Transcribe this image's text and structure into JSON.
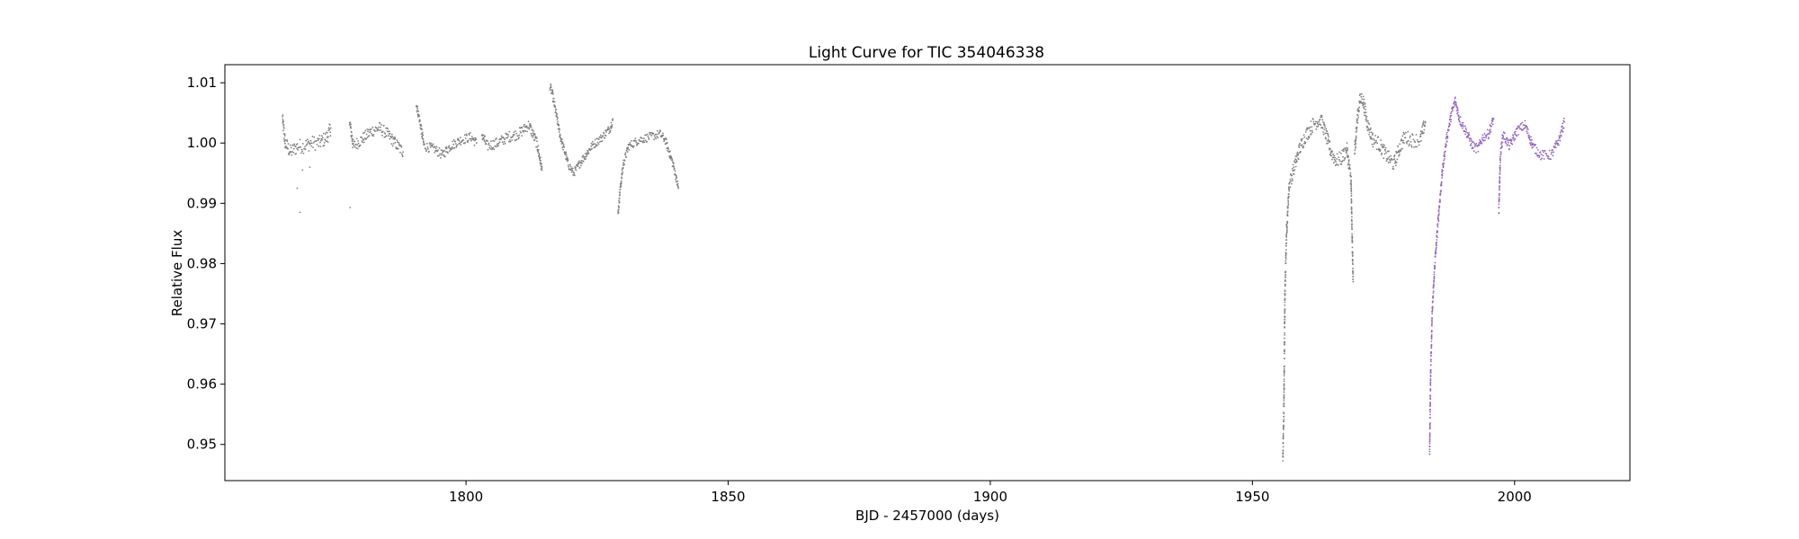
{
  "chart_data": {
    "type": "scatter",
    "title": "Light Curve for TIC 354046338",
    "xlabel": "BJD - 2457000 (days)",
    "ylabel": "Relative Flux",
    "xlim": [
      1754,
      2022
    ],
    "ylim": [
      0.944,
      1.013
    ],
    "xticks": [
      1800,
      1850,
      1900,
      1950,
      2000
    ],
    "yticks": [
      0.95,
      0.96,
      0.97,
      0.98,
      0.99,
      1.0,
      1.01
    ],
    "ytick_labels": [
      "0.95",
      "0.96",
      "0.97",
      "0.98",
      "0.99",
      "1.00",
      "1.01"
    ],
    "grid": false,
    "legend": "none",
    "series": [
      {
        "color": "#808080",
        "segments": [
          {
            "x": [
              1765.0,
              1765.5,
              1766.5,
              1768.0,
              1769.0,
              1770.5,
              1772.0,
              1773.5,
              1774.2
            ],
            "y": [
              1.004,
              1.0,
              0.9985,
              0.9995,
              0.9995,
              1.0,
              1.0,
              1.001,
              1.0025
            ],
            "spread": 0.0012
          },
          {
            "x": [
              1767.8,
              1768.3,
              1768.8,
              1770.2,
              1777.9
            ],
            "y": [
              0.9925,
              0.9885,
              0.9955,
              0.996,
              0.9893
            ],
            "spread": 0,
            "sparse": true
          },
          {
            "x": [
              1777.8,
              1778.5,
              1780.0,
              1782.0,
              1783.5,
              1785.0,
              1787.0,
              1788.0
            ],
            "y": [
              1.0035,
              0.9995,
              1.0005,
              1.002,
              1.0025,
              1.0015,
              0.9995,
              0.9985
            ],
            "spread": 0.001
          },
          {
            "x": [
              1790.5,
              1791.0,
              1792.0,
              1794.0,
              1795.5,
              1797.0,
              1799.0,
              1801.0,
              1802.0
            ],
            "y": [
              1.0065,
              1.0045,
              0.9995,
              0.999,
              0.998,
              0.9995,
              1.0005,
              1.001,
              1.0
            ],
            "spread": 0.0008
          },
          {
            "x": [
              1803.0,
              1804.0,
              1806.0,
              1808.0,
              1810.0,
              1812.0,
              1813.5,
              1814.5
            ],
            "y": [
              1.0015,
              0.9995,
              1.0,
              1.001,
              1.0015,
              1.003,
              1.0,
              0.9955
            ],
            "spread": 0.0009
          },
          {
            "x": [
              1816.0,
              1816.5,
              1818.0,
              1819.5,
              1820.5,
              1822.0,
              1824.0,
              1826.0,
              1827.5,
              1828.0
            ],
            "y": [
              1.0095,
              1.008,
              1.001,
              0.9965,
              0.995,
              0.997,
              0.9995,
              1.001,
              1.0025,
              1.004
            ],
            "spread": 0.0007
          },
          {
            "x": [
              1829.0,
              1829.3,
              1830.0,
              1831.0,
              1833.0,
              1835.0,
              1837.0,
              1838.0,
              1839.5,
              1840.5
            ],
            "y": [
              0.988,
              0.9915,
              0.9965,
              0.9995,
              1.0005,
              1.001,
              1.0015,
              1.0005,
              0.9965,
              0.9925
            ],
            "spread": 0.0007
          },
          {
            "x": [
              1955.8,
              1956.0,
              1956.2,
              1956.5,
              1957.0,
              1958.0,
              1959.0,
              1960.0,
              1961.5,
              1963.0,
              1964.0,
              1965.0,
              1966.0,
              1967.0,
              1968.0,
              1968.8,
              1969.2
            ],
            "y": [
              0.9475,
              0.956,
              0.975,
              0.985,
              0.993,
              0.996,
              0.999,
              1.001,
              1.003,
              1.004,
              1.0015,
              0.9985,
              0.997,
              0.9975,
              0.999,
              0.994,
              0.977
            ],
            "spread": 0.0012
          },
          {
            "x": [
              1969.5,
              1970.0,
              1970.5,
              1971.0,
              1972.0,
              1973.0,
              1974.0,
              1975.5,
              1977.0,
              1978.0,
              1979.0,
              1980.5,
              1982.0,
              1983.0
            ],
            "y": [
              0.9985,
              1.004,
              1.007,
              1.0075,
              1.003,
              1.0005,
              1.0,
              0.998,
              0.9965,
              0.999,
              1.001,
              1.0005,
              1.0005,
              1.0035
            ],
            "spread": 0.0012
          }
        ]
      },
      {
        "color": "#9467bd",
        "segments": [
          {
            "x": [
              1983.8,
              1984.0,
              1984.3,
              1984.8,
              1985.5,
              1986.2,
              1987.0,
              1988.0,
              1988.7,
              1989.5,
              1991.0,
              1992.0,
              1993.0,
              1994.0,
              1995.0,
              1996.0
            ],
            "y": [
              0.9485,
              0.962,
              0.972,
              0.98,
              0.988,
              0.995,
              1.0005,
              1.005,
              1.007,
              1.004,
              1.0015,
              0.9995,
              0.999,
              1.001,
              1.0015,
              1.004
            ],
            "spread": 0.0008
          },
          {
            "x": [
              1997.0,
              1997.3,
              1997.8,
              1999.0,
              2000.5,
              2002.0,
              2003.5,
              2005.0,
              2007.0,
              2008.5,
              2009.5
            ],
            "y": [
              0.9885,
              0.998,
              1.0015,
              0.9995,
              1.002,
              1.003,
              0.9995,
              0.998,
              0.998,
              1.0005,
              1.0035
            ],
            "spread": 0.0008
          }
        ]
      }
    ]
  }
}
